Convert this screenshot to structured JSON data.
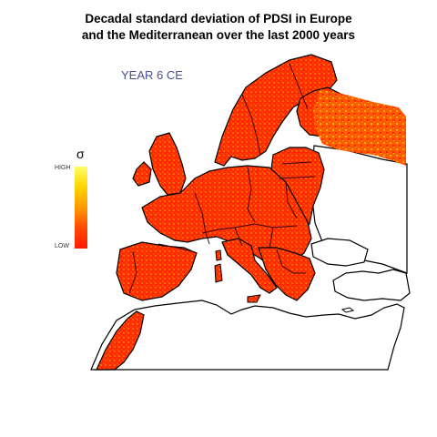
{
  "title": {
    "line1": "Decadal standard deviation of PDSI in Europe",
    "line2": "and the Mediterranean over the last 2000 years"
  },
  "year_label": "YEAR 6 CE",
  "legend": {
    "symbol": "σ",
    "high_label": "HIGH",
    "low_label": "LOW",
    "gradient_colors": [
      "#ffff6a",
      "#ffd400",
      "#ff9900",
      "#ff4a00",
      "#ff1a00"
    ]
  },
  "map": {
    "land_color": "#ffffff",
    "outline_color": "#000000",
    "border_color": "#3a0000",
    "field_low_color": "#ff1a00",
    "field_high_color": "#ffd000"
  }
}
